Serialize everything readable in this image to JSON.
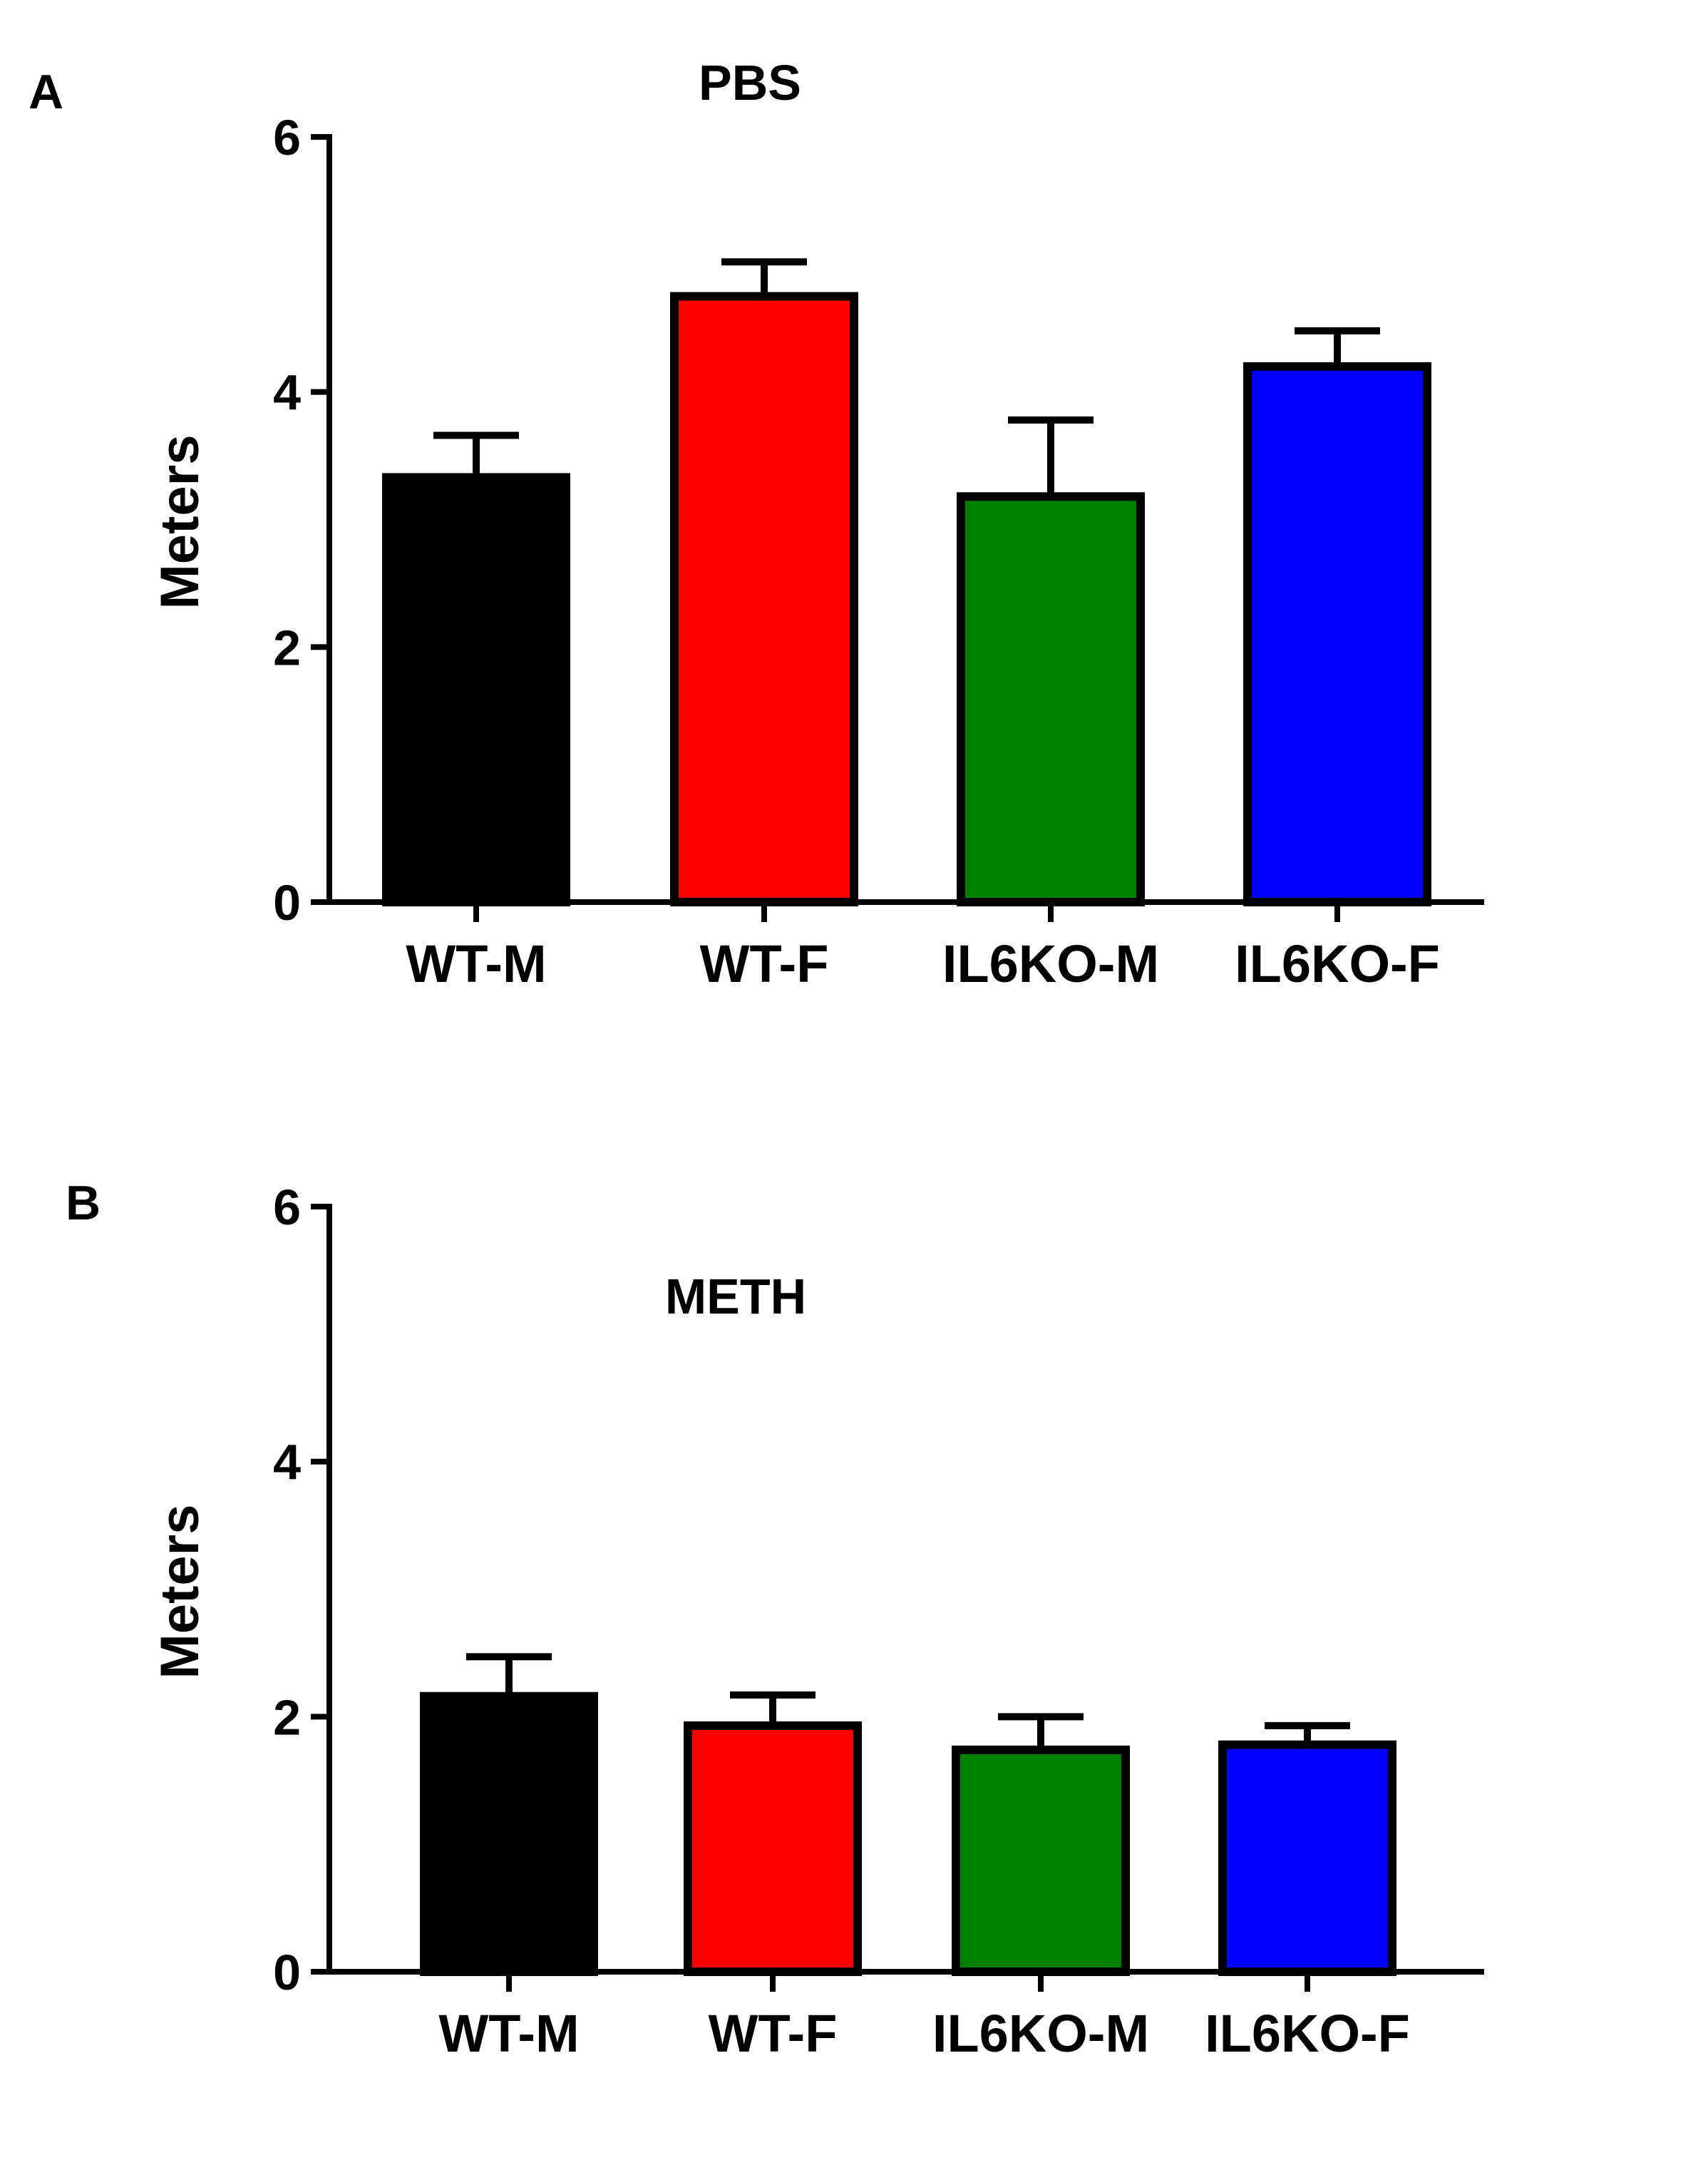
{
  "chart_data": [
    {
      "type": "bar",
      "panel": "A",
      "title": "PBS",
      "xlabel": "",
      "ylabel": "Meters",
      "ylim": [
        0,
        6
      ],
      "yticks": [
        "0",
        "2",
        "4",
        "6"
      ],
      "categories": [
        "WT-M",
        "WT-F",
        "IL6KO-M",
        "IL6KO-F"
      ],
      "values": [
        3.33,
        4.75,
        3.18,
        4.2
      ],
      "error": [
        0.33,
        0.27,
        0.6,
        0.28
      ],
      "colors": [
        "#000000",
        "#ff0000",
        "#008000",
        "#0000ff"
      ],
      "grid": false,
      "legend": "none"
    },
    {
      "type": "bar",
      "panel": "B",
      "title": "METH",
      "xlabel": "",
      "ylabel": "Meters",
      "ylim": [
        0,
        6
      ],
      "yticks": [
        "0",
        "2",
        "4",
        "6"
      ],
      "categories": [
        "WT-M",
        "WT-F",
        "IL6KO-M",
        "IL6KO-F"
      ],
      "values": [
        2.16,
        1.93,
        1.74,
        1.78
      ],
      "error": [
        0.31,
        0.24,
        0.26,
        0.15
      ],
      "colors": [
        "#000000",
        "#ff0000",
        "#008000",
        "#0000ff"
      ],
      "grid": false,
      "legend": "none"
    }
  ]
}
